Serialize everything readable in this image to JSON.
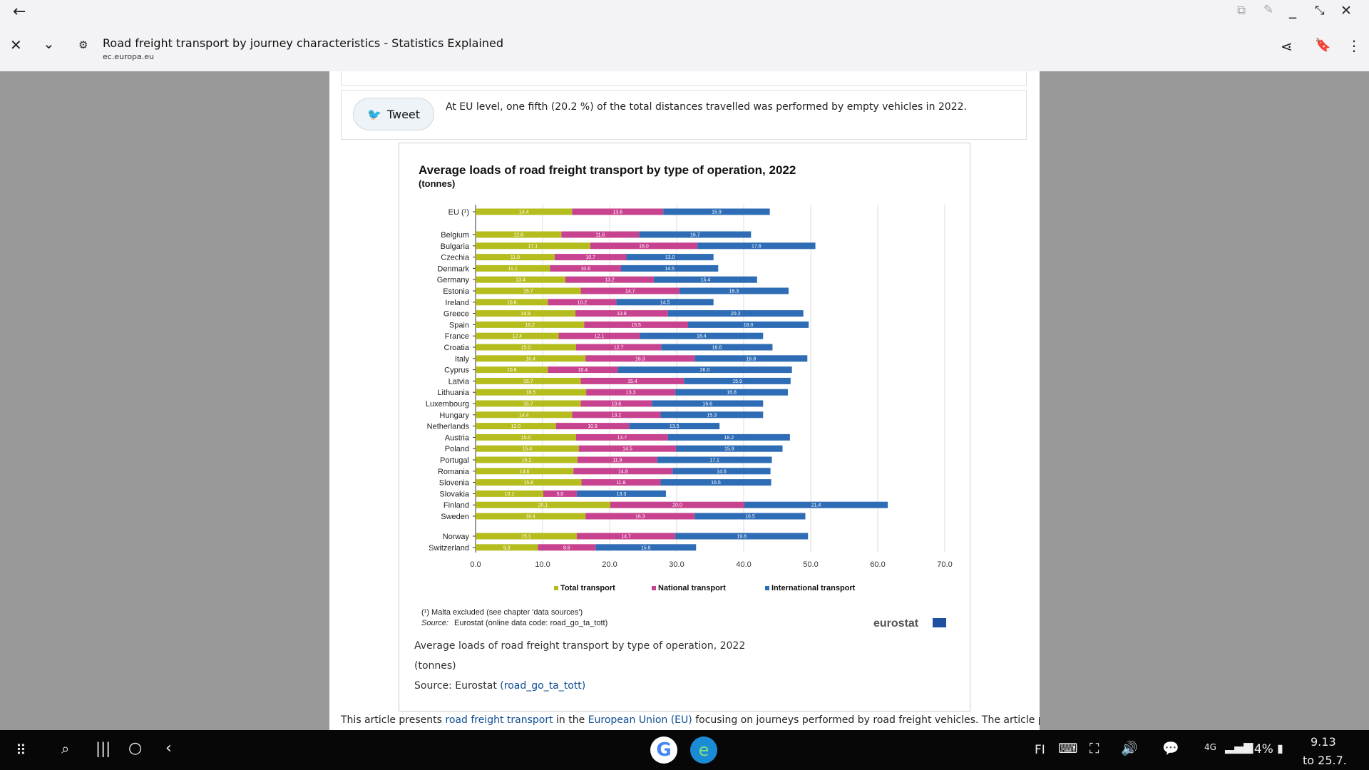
{
  "browser": {
    "title": "Road freight transport by journey characteristics - Statistics Explained",
    "url": "ec.europa.eu"
  },
  "tweet": {
    "button_label": "Tweet",
    "text": "At EU level, one fifth (20.2 %) of the total distances travelled was performed by empty vehicles in 2022."
  },
  "chart_data": {
    "type": "bar",
    "stacked": true,
    "orientation": "horizontal",
    "title": "Average loads of road freight transport by type of operation, 2022",
    "subtitle": "(tonnes)",
    "categories": [
      "EU (¹)",
      "Belgium",
      "Bulgaria",
      "Czechia",
      "Denmark",
      "Germany",
      "Estonia",
      "Ireland",
      "Greece",
      "Spain",
      "France",
      "Croatia",
      "Italy",
      "Cyprus",
      "Latvia",
      "Lithuania",
      "Luxembourg",
      "Hungary",
      "Netherlands",
      "Austria",
      "Poland",
      "Portugal",
      "Romania",
      "Slovenia",
      "Slovakia",
      "Finland",
      "Sweden",
      "Norway",
      "Switzerland"
    ],
    "series": [
      {
        "name": "Total transport",
        "color": "#b5bd1e",
        "values": [
          14.4,
          12.8,
          17.1,
          11.8,
          11.1,
          13.4,
          15.7,
          10.8,
          14.9,
          16.2,
          12.4,
          15.0,
          16.4,
          10.8,
          15.7,
          16.5,
          15.7,
          14.4,
          12.0,
          15.0,
          15.4,
          15.2,
          14.6,
          15.8,
          10.1,
          20.1,
          16.4,
          15.1,
          9.3
        ]
      },
      {
        "name": "National transport",
        "color": "#c8438f",
        "values": [
          13.6,
          11.6,
          16.0,
          10.7,
          10.6,
          13.2,
          14.7,
          10.2,
          13.8,
          15.5,
          12.1,
          12.7,
          16.3,
          10.4,
          15.4,
          13.3,
          10.6,
          13.2,
          10.9,
          13.7,
          14.5,
          11.9,
          14.8,
          11.8,
          5.0,
          20.0,
          16.3,
          14.7,
          8.6
        ]
      },
      {
        "name": "International transport",
        "color": "#2e6db5",
        "values": [
          15.9,
          16.7,
          17.6,
          13.0,
          14.5,
          15.4,
          16.3,
          14.5,
          20.2,
          18.0,
          18.4,
          16.6,
          16.8,
          26.0,
          15.9,
          16.8,
          16.6,
          15.3,
          13.5,
          18.2,
          15.9,
          17.1,
          14.6,
          16.5,
          13.3,
          21.4,
          16.5,
          19.8,
          15.0
        ]
      }
    ],
    "xlim": [
      0,
      70
    ],
    "xticks": [
      "0.0",
      "10.0",
      "20.0",
      "30.0",
      "40.0",
      "50.0",
      "60.0",
      "70.0"
    ],
    "legend_position": "bottom",
    "footnote": "(¹) Malta excluded (see chapter 'data sources')",
    "source_label": "Source:",
    "source_text": "Eurostat (online data code: road_go_ta_tott)",
    "logo_text": "eurostat"
  },
  "caption": {
    "line1": "Average loads of road freight transport by type of operation, 2022",
    "line2": "(tonnes)",
    "source_prefix": "Source: Eurostat ",
    "source_link": "(road_go_ta_tott)"
  },
  "article": {
    "p1": "This article presents ",
    "link1": "road freight transport",
    "p2": " in the ",
    "link2": "European Union (EU)",
    "p3": " focusing on journeys performed by road freight vehicles. The article presents"
  },
  "taskbar": {
    "lang": "FI",
    "network": "4G",
    "battery": "34%",
    "time": "9.13",
    "date": "to 25.7."
  }
}
